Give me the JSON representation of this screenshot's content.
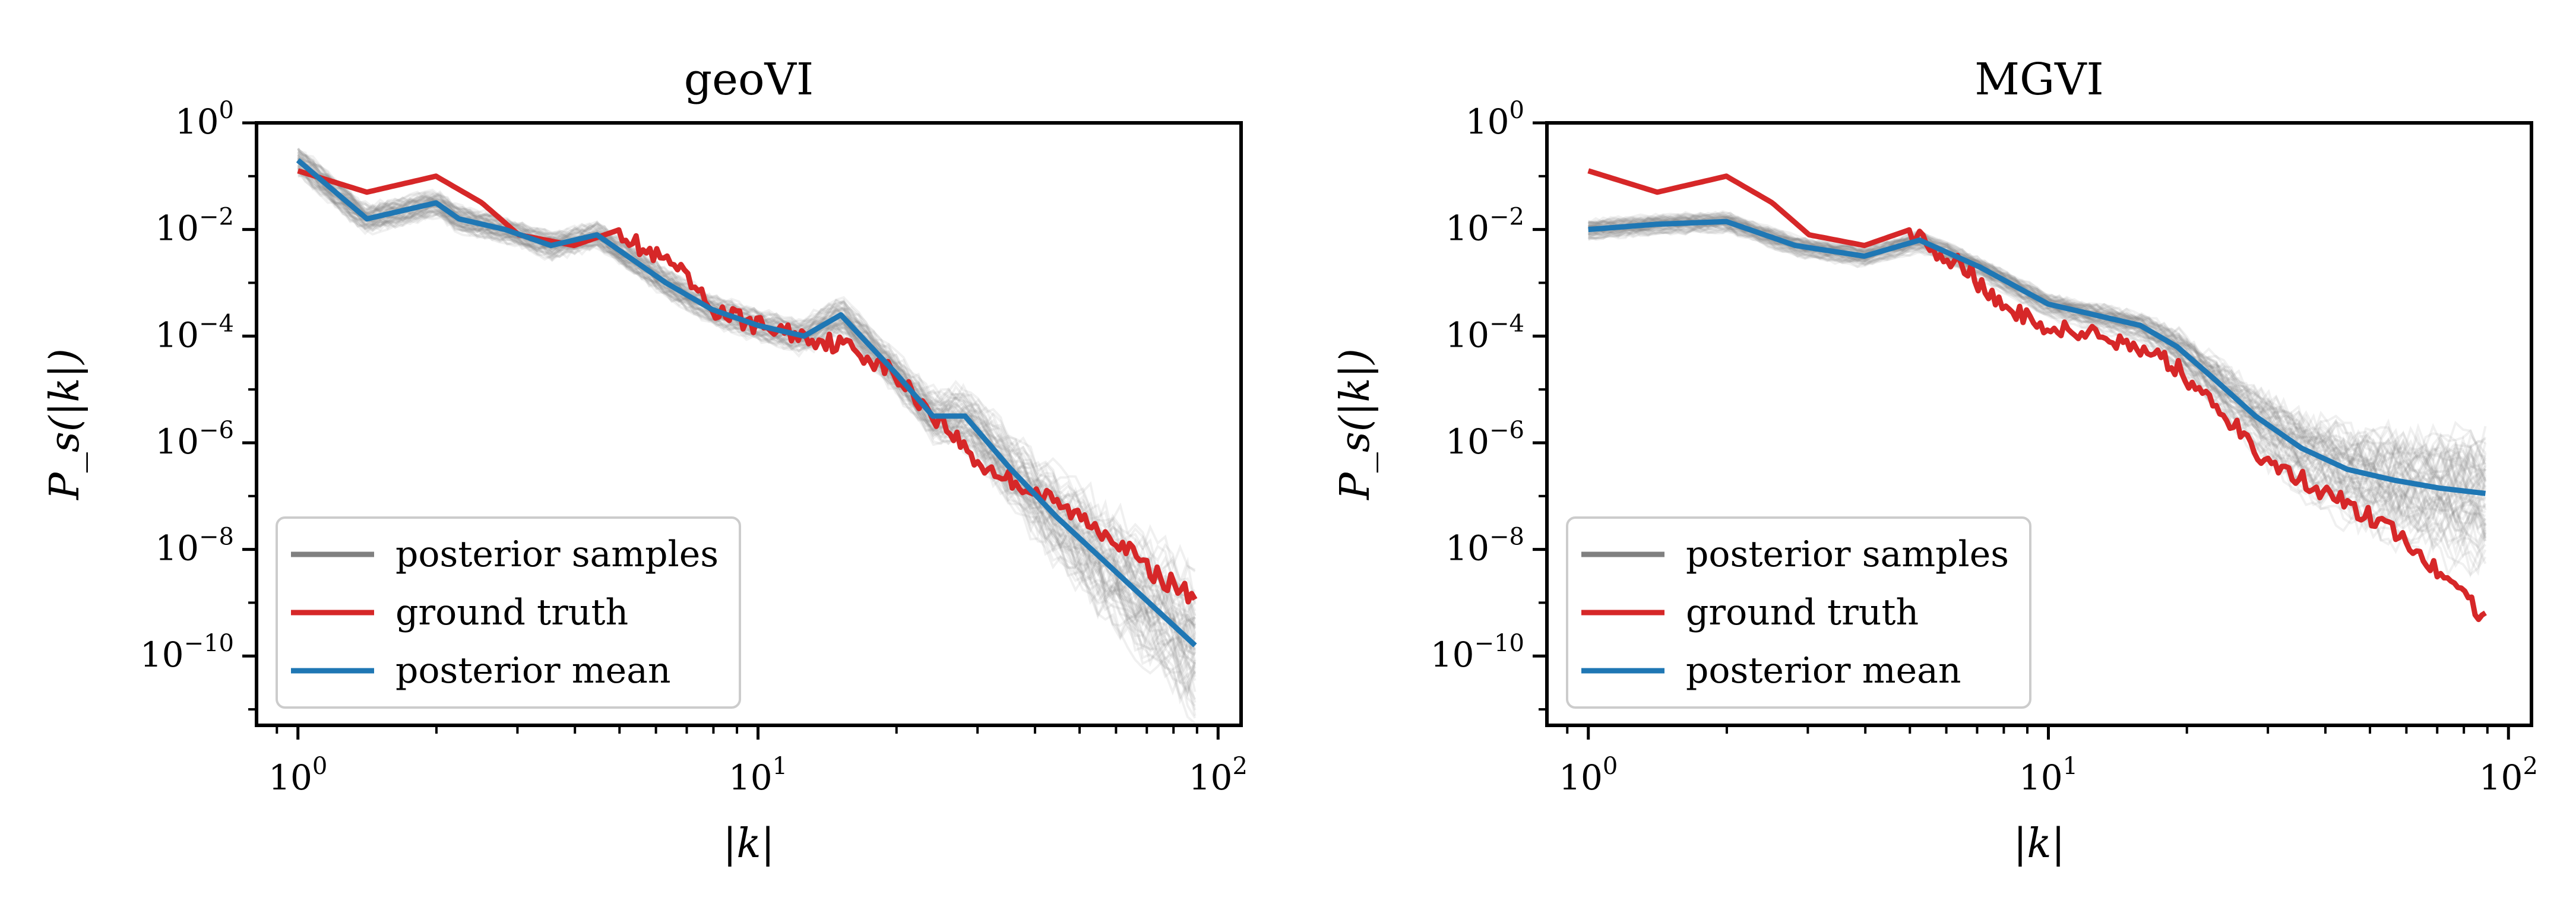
{
  "colors": {
    "samples": "#808080",
    "ground_truth": "#d62728",
    "mean": "#1f77b4",
    "axes": "#000000",
    "legend_border": "#cccccc"
  },
  "chart_data": [
    {
      "type": "line",
      "title": "geoVI",
      "xlabel": "|k|",
      "ylabel": "P_s(|k|)",
      "xscale": "log",
      "yscale": "log",
      "xlim_log10": [
        -0.09,
        2.05
      ],
      "ylim_log10": [
        -11.3,
        0.0
      ],
      "x_ticks": [
        {
          "base": "10",
          "exp": "0"
        },
        {
          "base": "10",
          "exp": "1"
        },
        {
          "base": "10",
          "exp": "2"
        }
      ],
      "y_ticks": [
        {
          "base": "10",
          "exp": "0"
        },
        {
          "base": "10",
          "exp": "−2"
        },
        {
          "base": "10",
          "exp": "−4"
        },
        {
          "base": "10",
          "exp": "−6"
        },
        {
          "base": "10",
          "exp": "−8"
        },
        {
          "base": "10",
          "exp": "−10"
        }
      ],
      "legend_position": "lower-left",
      "legend": [
        "posterior samples",
        "ground truth",
        "posterior mean"
      ],
      "series": [
        {
          "name": "posterior samples",
          "style": "band",
          "n_samples": 60,
          "spread_log10": [
            [
              0,
              0.4
            ],
            [
              0.5,
              0.35
            ],
            [
              1.0,
              0.4
            ],
            [
              1.3,
              0.5
            ],
            [
              1.5,
              0.8
            ],
            [
              1.7,
              1.2
            ],
            [
              1.95,
              1.6
            ]
          ]
        },
        {
          "name": "ground truth",
          "points_log10": [
            [
              0,
              -0.9
            ],
            [
              0.15,
              -1.3
            ],
            [
              0.3,
              -1.0
            ],
            [
              0.4,
              -1.5
            ],
            [
              0.48,
              -2.1
            ],
            [
              0.6,
              -2.3
            ],
            [
              0.7,
              -2.0
            ],
            [
              0.75,
              -2.4
            ],
            [
              0.82,
              -2.7
            ],
            [
              0.9,
              -3.5
            ],
            [
              1.0,
              -3.8
            ],
            [
              1.1,
              -4.0
            ],
            [
              1.2,
              -4.2
            ],
            [
              1.28,
              -4.6
            ],
            [
              1.35,
              -5.2
            ],
            [
              1.42,
              -5.8
            ],
            [
              1.48,
              -6.4
            ],
            [
              1.55,
              -6.7
            ],
            [
              1.62,
              -7.0
            ],
            [
              1.7,
              -7.4
            ],
            [
              1.78,
              -7.8
            ],
            [
              1.85,
              -8.4
            ],
            [
              1.95,
              -8.9
            ]
          ]
        },
        {
          "name": "posterior mean",
          "points_log10": [
            [
              0,
              -0.7
            ],
            [
              0.15,
              -1.8
            ],
            [
              0.3,
              -1.5
            ],
            [
              0.35,
              -1.8
            ],
            [
              0.45,
              -2.0
            ],
            [
              0.55,
              -2.3
            ],
            [
              0.65,
              -2.1
            ],
            [
              0.8,
              -3.0
            ],
            [
              0.9,
              -3.5
            ],
            [
              1.0,
              -3.8
            ],
            [
              1.1,
              -4.0
            ],
            [
              1.18,
              -3.6
            ],
            [
              1.3,
              -4.7
            ],
            [
              1.38,
              -5.5
            ],
            [
              1.45,
              -5.5
            ],
            [
              1.55,
              -6.5
            ],
            [
              1.65,
              -7.4
            ],
            [
              1.75,
              -8.2
            ],
            [
              1.85,
              -9.0
            ],
            [
              1.95,
              -9.8
            ]
          ]
        }
      ]
    },
    {
      "type": "line",
      "title": "MGVI",
      "xlabel": "|k|",
      "ylabel": "P_s(|k|)",
      "xscale": "log",
      "yscale": "log",
      "xlim_log10": [
        -0.09,
        2.05
      ],
      "ylim_log10": [
        -11.3,
        0.0
      ],
      "x_ticks": [
        {
          "base": "10",
          "exp": "0"
        },
        {
          "base": "10",
          "exp": "1"
        },
        {
          "base": "10",
          "exp": "2"
        }
      ],
      "y_ticks": [
        {
          "base": "10",
          "exp": "0"
        },
        {
          "base": "10",
          "exp": "−2"
        },
        {
          "base": "10",
          "exp": "−4"
        },
        {
          "base": "10",
          "exp": "−6"
        },
        {
          "base": "10",
          "exp": "−8"
        },
        {
          "base": "10",
          "exp": "−10"
        }
      ],
      "legend_position": "lower-left",
      "legend": [
        "posterior samples",
        "ground truth",
        "posterior mean"
      ],
      "series": [
        {
          "name": "posterior samples",
          "style": "band",
          "n_samples": 60,
          "spread_log10": [
            [
              0,
              0.25
            ],
            [
              0.5,
              0.25
            ],
            [
              1.0,
              0.3
            ],
            [
              1.2,
              0.35
            ],
            [
              1.4,
              0.7
            ],
            [
              1.6,
              1.1
            ],
            [
              1.95,
              1.6
            ]
          ]
        },
        {
          "name": "ground truth",
          "points_log10": [
            [
              0,
              -0.9
            ],
            [
              0.15,
              -1.3
            ],
            [
              0.3,
              -1.0
            ],
            [
              0.4,
              -1.5
            ],
            [
              0.48,
              -2.1
            ],
            [
              0.6,
              -2.3
            ],
            [
              0.7,
              -2.0
            ],
            [
              0.75,
              -2.4
            ],
            [
              0.82,
              -2.7
            ],
            [
              0.9,
              -3.5
            ],
            [
              1.0,
              -3.8
            ],
            [
              1.1,
              -4.0
            ],
            [
              1.2,
              -4.2
            ],
            [
              1.28,
              -4.6
            ],
            [
              1.35,
              -5.2
            ],
            [
              1.42,
              -5.8
            ],
            [
              1.48,
              -6.4
            ],
            [
              1.55,
              -6.7
            ],
            [
              1.62,
              -7.0
            ],
            [
              1.7,
              -7.4
            ],
            [
              1.78,
              -7.8
            ],
            [
              1.85,
              -8.4
            ],
            [
              1.95,
              -9.3
            ]
          ]
        },
        {
          "name": "posterior mean",
          "points_log10": [
            [
              0,
              -2.0
            ],
            [
              0.15,
              -1.9
            ],
            [
              0.3,
              -1.85
            ],
            [
              0.45,
              -2.3
            ],
            [
              0.6,
              -2.5
            ],
            [
              0.72,
              -2.2
            ],
            [
              0.85,
              -2.7
            ],
            [
              1.0,
              -3.4
            ],
            [
              1.1,
              -3.6
            ],
            [
              1.2,
              -3.8
            ],
            [
              1.28,
              -4.2
            ],
            [
              1.36,
              -4.8
            ],
            [
              1.45,
              -5.5
            ],
            [
              1.55,
              -6.1
            ],
            [
              1.65,
              -6.5
            ],
            [
              1.75,
              -6.7
            ],
            [
              1.85,
              -6.85
            ],
            [
              1.95,
              -6.95
            ]
          ]
        }
      ]
    }
  ]
}
